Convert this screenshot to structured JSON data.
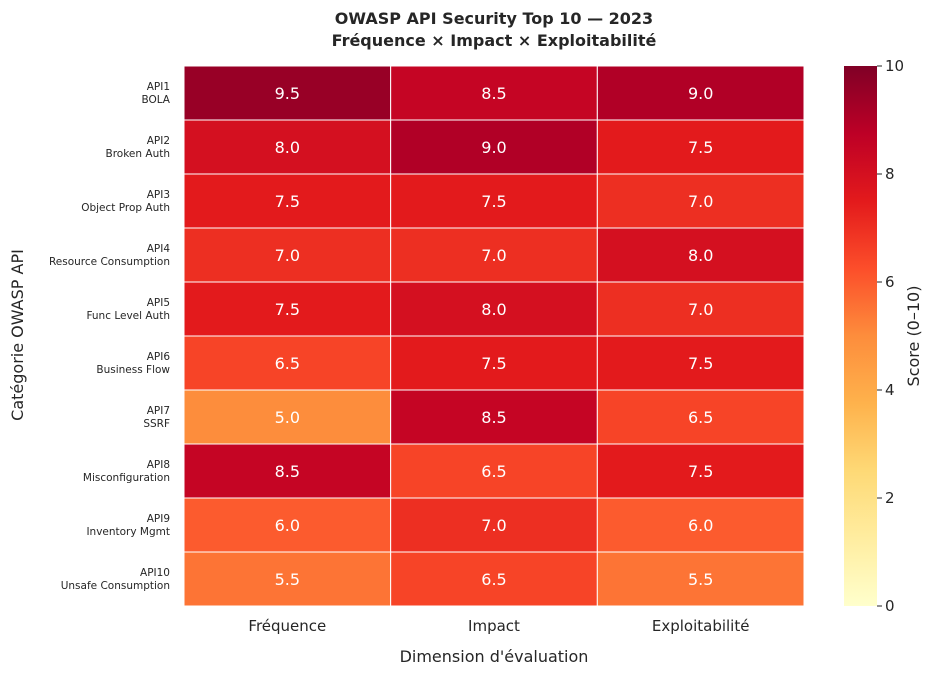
{
  "chart_data": {
    "type": "heatmap",
    "title": "OWASP API Security Top 10 — 2023",
    "subtitle": "Fréquence × Impact × Exploitabilité",
    "xlabel": "Dimension d'évaluation",
    "ylabel": "Catégorie OWASP API",
    "columns": [
      "Fréquence",
      "Impact",
      "Exploitabilité"
    ],
    "rows": [
      {
        "code": "API1",
        "name": "BOLA",
        "values": [
          9.5,
          8.5,
          9.0
        ]
      },
      {
        "code": "API2",
        "name": "Broken Auth",
        "values": [
          8.0,
          9.0,
          7.5
        ]
      },
      {
        "code": "API3",
        "name": "Object Prop Auth",
        "values": [
          7.5,
          7.5,
          7.0
        ]
      },
      {
        "code": "API4",
        "name": "Resource Consumption",
        "values": [
          7.0,
          7.0,
          8.0
        ]
      },
      {
        "code": "API5",
        "name": "Func Level Auth",
        "values": [
          7.5,
          8.0,
          7.0
        ]
      },
      {
        "code": "API6",
        "name": "Business Flow",
        "values": [
          6.5,
          7.5,
          7.5
        ]
      },
      {
        "code": "API7",
        "name": "SSRF",
        "values": [
          5.0,
          8.5,
          6.5
        ]
      },
      {
        "code": "API8",
        "name": "Misconfiguration",
        "values": [
          8.5,
          6.5,
          7.5
        ]
      },
      {
        "code": "API9",
        "name": "Inventory Mgmt",
        "values": [
          6.0,
          7.0,
          6.0
        ]
      },
      {
        "code": "API10",
        "name": "Unsafe Consumption",
        "values": [
          5.5,
          6.5,
          5.5
        ]
      }
    ],
    "colorbar": {
      "label": "Score (0–10)",
      "range": [
        0,
        10
      ],
      "ticks": [
        0,
        2,
        4,
        6,
        8,
        10
      ],
      "colormap": "YlOrRd",
      "stops": [
        "#ffffcc",
        "#ffeda0",
        "#fed976",
        "#feb24c",
        "#fd8d3c",
        "#fc4e2a",
        "#e31a1c",
        "#bd0026",
        "#800026"
      ]
    }
  }
}
